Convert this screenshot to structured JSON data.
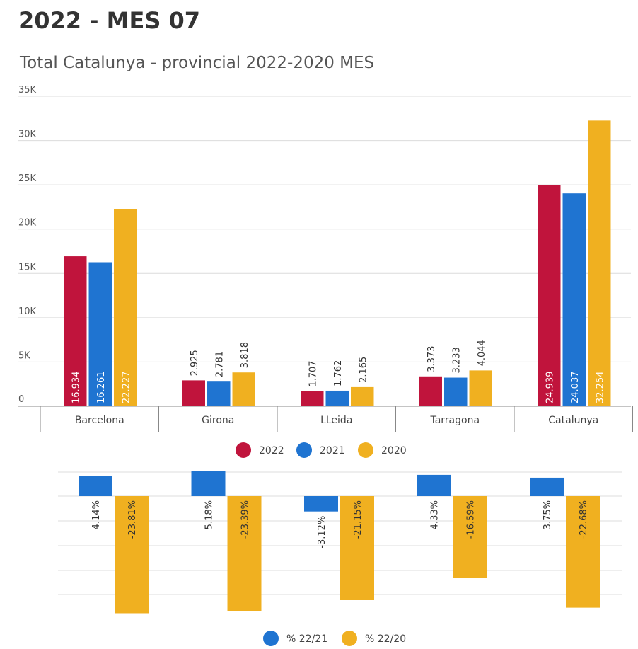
{
  "page": {
    "title": "2022 - MES 07"
  },
  "colors": {
    "c2022": "#c0143c",
    "c2021": "#1f74d1",
    "c2020": "#f0b020",
    "grid": "#dcdcdc",
    "axis": "#888888"
  },
  "chart_data": [
    {
      "type": "bar",
      "title": "Total Catalunya - provincial 2022-2020 MES",
      "categories": [
        "Barcelona",
        "Girona",
        "LLeida",
        "Tarragona",
        "Catalunya"
      ],
      "series": [
        {
          "name": "2022",
          "values": [
            16934,
            2925,
            1707,
            3373,
            24939
          ],
          "labels": [
            "16.934",
            "2.925",
            "1.707",
            "3.373",
            "24.939"
          ]
        },
        {
          "name": "2021",
          "values": [
            16261,
            2781,
            1762,
            3233,
            24037
          ],
          "labels": [
            "16.261",
            "2.781",
            "1.762",
            "3.233",
            "24.037"
          ]
        },
        {
          "name": "2020",
          "values": [
            22227,
            3818,
            2165,
            4044,
            32254
          ],
          "labels": [
            "22.227",
            "3.818",
            "2.165",
            "4.044",
            "32.254"
          ]
        }
      ],
      "yticks": [
        {
          "value": 0,
          "label": "0"
        },
        {
          "value": 5000,
          "label": "5K"
        },
        {
          "value": 10000,
          "label": "10K"
        },
        {
          "value": 15000,
          "label": "15K"
        },
        {
          "value": 20000,
          "label": "20K"
        },
        {
          "value": 25000,
          "label": "25K"
        },
        {
          "value": 30000,
          "label": "30K"
        },
        {
          "value": 35000,
          "label": "35K"
        }
      ],
      "ylim": [
        0,
        35000
      ],
      "grid": true,
      "legend": "bottom"
    },
    {
      "type": "bar",
      "title": "",
      "categories": [
        "Barcelona",
        "Girona",
        "LLeida",
        "Tarragona",
        "Catalunya"
      ],
      "series": [
        {
          "name": "% 22/21",
          "values": [
            4.14,
            5.18,
            -3.12,
            4.33,
            3.75
          ],
          "labels": [
            "4.14%",
            "5.18%",
            "-3.12%",
            "4.33%",
            "3.75%"
          ]
        },
        {
          "name": "% 22/20",
          "values": [
            -23.81,
            -23.39,
            -21.15,
            -16.59,
            -22.68
          ],
          "labels": [
            "-23.81%",
            "-23.39%",
            "-21.15%",
            "-16.59%",
            "-22.68%"
          ]
        }
      ],
      "ylim": [
        -25,
        5
      ],
      "grid": true,
      "legend": "bottom"
    }
  ]
}
